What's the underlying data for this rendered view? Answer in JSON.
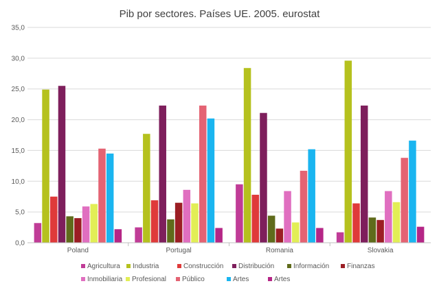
{
  "chart_data": {
    "type": "bar",
    "title": "Pib por sectores. Países UE. 2005. eurostat",
    "xlabel": "",
    "ylabel": "",
    "ylim": [
      0,
      35
    ],
    "yticks": [
      "0,0",
      "5,0",
      "10,0",
      "15,0",
      "20,0",
      "25,0",
      "30,0",
      "35,0"
    ],
    "ytick_values": [
      0,
      5,
      10,
      15,
      20,
      25,
      30,
      35
    ],
    "grid": true,
    "legend_position": "bottom",
    "categories": [
      "Poland",
      "Portugal",
      "Romania",
      "Slovakia"
    ],
    "series": [
      {
        "name": "Agricultura",
        "color": "#C03C97",
        "values": [
          3.2,
          2.5,
          9.5,
          1.7
        ]
      },
      {
        "name": "Industria",
        "color": "#B5C11E",
        "values": [
          24.9,
          17.7,
          28.4,
          29.6
        ]
      },
      {
        "name": "Construcción",
        "color": "#DF3A3A",
        "values": [
          7.5,
          6.9,
          7.8,
          6.4
        ]
      },
      {
        "name": "Distribución",
        "color": "#7E1F5C",
        "values": [
          25.5,
          22.3,
          21.1,
          22.3
        ]
      },
      {
        "name": "Información",
        "color": "#5F6B1B",
        "values": [
          4.3,
          3.8,
          4.4,
          4.1
        ]
      },
      {
        "name": "Finanzas",
        "color": "#9B1E24",
        "values": [
          4.0,
          6.5,
          2.3,
          3.7
        ]
      },
      {
        "name": "Inmobiliaria",
        "color": "#E06FC0",
        "values": [
          5.9,
          8.6,
          8.4,
          8.4
        ]
      },
      {
        "name": "Profesional",
        "color": "#E2EE56",
        "values": [
          6.3,
          6.4,
          3.3,
          6.6
        ]
      },
      {
        "name": "Público",
        "color": "#E46373",
        "values": [
          15.3,
          22.3,
          11.7,
          13.8
        ]
      },
      {
        "name": "Artes",
        "color": "#1AB5F0",
        "values": [
          14.5,
          20.2,
          15.2,
          16.6
        ]
      },
      {
        "name": "Artes",
        "color": "#B52686",
        "values": [
          2.2,
          2.4,
          2.4,
          2.6
        ]
      }
    ]
  }
}
